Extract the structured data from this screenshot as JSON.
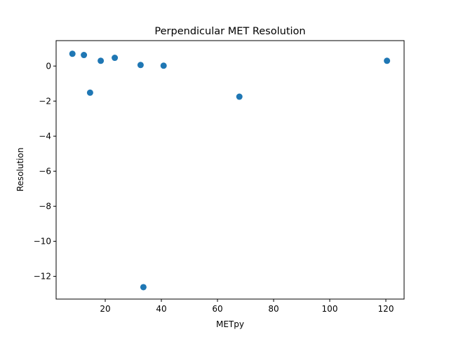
{
  "chart_data": {
    "type": "scatter",
    "title": "Perpendicular MET Resolution",
    "xlabel": "METpy",
    "ylabel": "Resolution",
    "xlim": [
      2.5,
      126.5
    ],
    "ylim": [
      -13.3,
      1.45
    ],
    "xticks": [
      20,
      40,
      60,
      80,
      100,
      120
    ],
    "yticks": [
      0,
      -2,
      -4,
      -6,
      -8,
      -10,
      -12
    ],
    "xtick_labels": [
      "20",
      "40",
      "60",
      "80",
      "100",
      "120"
    ],
    "ytick_labels": [
      "0",
      "−2",
      "−4",
      "−6",
      "−8",
      "−10",
      "−12"
    ],
    "grid": false,
    "point_color": "#1f77b4",
    "points": [
      {
        "x": 8.3,
        "y": 0.7
      },
      {
        "x": 12.4,
        "y": 0.63
      },
      {
        "x": 14.6,
        "y": -1.52
      },
      {
        "x": 18.4,
        "y": 0.3
      },
      {
        "x": 23.4,
        "y": 0.47
      },
      {
        "x": 32.6,
        "y": 0.06
      },
      {
        "x": 33.6,
        "y": -12.62
      },
      {
        "x": 40.8,
        "y": 0.02
      },
      {
        "x": 67.8,
        "y": -1.75
      },
      {
        "x": 120.4,
        "y": 0.3
      }
    ]
  }
}
